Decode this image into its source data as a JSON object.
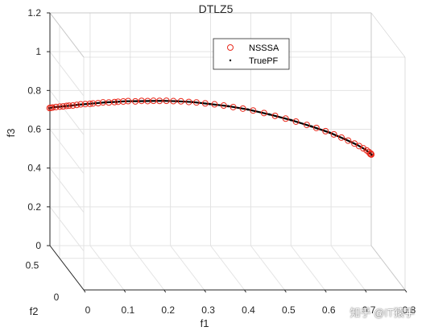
{
  "chart_data": {
    "type": "scatter",
    "title": "DTLZ5",
    "xlabel": "f1",
    "ylabel": "f2",
    "zlabel": "f3",
    "xlim": [
      0,
      0.8
    ],
    "ylim": [
      0,
      0.7
    ],
    "zlim": [
      0,
      1.2
    ],
    "xticks": [
      "0",
      "0.1",
      "0.2",
      "0.3",
      "0.4",
      "0.5",
      "0.6",
      "0.7",
      "0.8"
    ],
    "yticks": [
      "0",
      "0.5"
    ],
    "zticks": [
      "0",
      "0.2",
      "0.4",
      "0.6",
      "0.8",
      "1",
      "1.2"
    ],
    "grid": true,
    "legend": {
      "placement": "top-right",
      "entries": [
        "NSSSA",
        "TruePF"
      ]
    },
    "series": [
      {
        "name": "NSSSA",
        "marker": "circle",
        "color": "#e8291c",
        "points": [
          [
            0.0,
            0.707,
            0.707
          ],
          [
            0.003,
            0.705,
            0.709
          ],
          [
            0.007,
            0.703,
            0.711
          ],
          [
            0.015,
            0.699,
            0.715
          ],
          [
            0.024,
            0.696,
            0.718
          ],
          [
            0.032,
            0.693,
            0.72
          ],
          [
            0.04,
            0.689,
            0.724
          ],
          [
            0.046,
            0.686,
            0.726
          ],
          [
            0.055,
            0.683,
            0.728
          ],
          [
            0.064,
            0.677,
            0.733
          ],
          [
            0.073,
            0.671,
            0.738
          ],
          [
            0.084,
            0.666,
            0.741
          ],
          [
            0.095,
            0.661,
            0.744
          ],
          [
            0.102,
            0.657,
            0.747
          ],
          [
            0.114,
            0.65,
            0.751
          ],
          [
            0.125,
            0.64,
            0.758
          ],
          [
            0.139,
            0.636,
            0.759
          ],
          [
            0.152,
            0.627,
            0.764
          ],
          [
            0.16,
            0.62,
            0.768
          ],
          [
            0.172,
            0.612,
            0.772
          ],
          [
            0.183,
            0.603,
            0.777
          ],
          [
            0.2,
            0.595,
            0.778
          ],
          [
            0.214,
            0.582,
            0.785
          ],
          [
            0.228,
            0.573,
            0.787
          ],
          [
            0.241,
            0.561,
            0.792
          ],
          [
            0.255,
            0.551,
            0.795
          ],
          [
            0.27,
            0.534,
            0.801
          ],
          [
            0.286,
            0.523,
            0.803
          ],
          [
            0.303,
            0.507,
            0.807
          ],
          [
            0.321,
            0.494,
            0.808
          ],
          [
            0.338,
            0.477,
            0.811
          ],
          [
            0.358,
            0.462,
            0.811
          ],
          [
            0.379,
            0.444,
            0.812
          ],
          [
            0.4,
            0.428,
            0.811
          ],
          [
            0.421,
            0.407,
            0.81
          ],
          [
            0.443,
            0.389,
            0.808
          ],
          [
            0.466,
            0.368,
            0.805
          ],
          [
            0.491,
            0.35,
            0.798
          ],
          [
            0.516,
            0.33,
            0.79
          ],
          [
            0.54,
            0.31,
            0.782
          ],
          [
            0.563,
            0.288,
            0.774
          ],
          [
            0.587,
            0.263,
            0.765
          ],
          [
            0.608,
            0.24,
            0.757
          ],
          [
            0.628,
            0.216,
            0.748
          ],
          [
            0.646,
            0.193,
            0.739
          ],
          [
            0.662,
            0.17,
            0.73
          ],
          [
            0.676,
            0.147,
            0.722
          ],
          [
            0.689,
            0.125,
            0.714
          ],
          [
            0.698,
            0.104,
            0.708
          ],
          [
            0.706,
            0.083,
            0.703
          ],
          [
            0.712,
            0.063,
            0.699
          ],
          [
            0.715,
            0.043,
            0.697
          ],
          [
            0.717,
            0.024,
            0.696
          ],
          [
            0.717,
            0.012,
            0.697
          ],
          [
            0.716,
            0.0,
            0.698
          ],
          [
            0.714,
            0.002,
            0.7
          ]
        ]
      },
      {
        "name": "TruePF",
        "marker": "dot",
        "color": "#000000",
        "points": [
          [
            0.0,
            0.707,
            0.707
          ],
          [
            0.01,
            0.7,
            0.714
          ],
          [
            0.022,
            0.697,
            0.717
          ],
          [
            0.036,
            0.691,
            0.722
          ],
          [
            0.05,
            0.684,
            0.727
          ],
          [
            0.068,
            0.674,
            0.735
          ],
          [
            0.088,
            0.664,
            0.742
          ],
          [
            0.108,
            0.654,
            0.749
          ],
          [
            0.13,
            0.638,
            0.759
          ],
          [
            0.156,
            0.624,
            0.766
          ],
          [
            0.178,
            0.607,
            0.775
          ],
          [
            0.207,
            0.589,
            0.781
          ],
          [
            0.234,
            0.568,
            0.789
          ],
          [
            0.263,
            0.543,
            0.798
          ],
          [
            0.294,
            0.515,
            0.805
          ],
          [
            0.329,
            0.486,
            0.81
          ],
          [
            0.368,
            0.453,
            0.811
          ],
          [
            0.41,
            0.418,
            0.811
          ],
          [
            0.454,
            0.378,
            0.807
          ],
          [
            0.503,
            0.34,
            0.794
          ],
          [
            0.552,
            0.299,
            0.778
          ],
          [
            0.597,
            0.252,
            0.761
          ],
          [
            0.637,
            0.205,
            0.744
          ],
          [
            0.669,
            0.159,
            0.726
          ],
          [
            0.694,
            0.115,
            0.711
          ],
          [
            0.709,
            0.073,
            0.701
          ],
          [
            0.716,
            0.034,
            0.696
          ],
          [
            0.717,
            0.006,
            0.697
          ],
          [
            0.716,
            0.0,
            0.698
          ]
        ]
      }
    ]
  }
}
